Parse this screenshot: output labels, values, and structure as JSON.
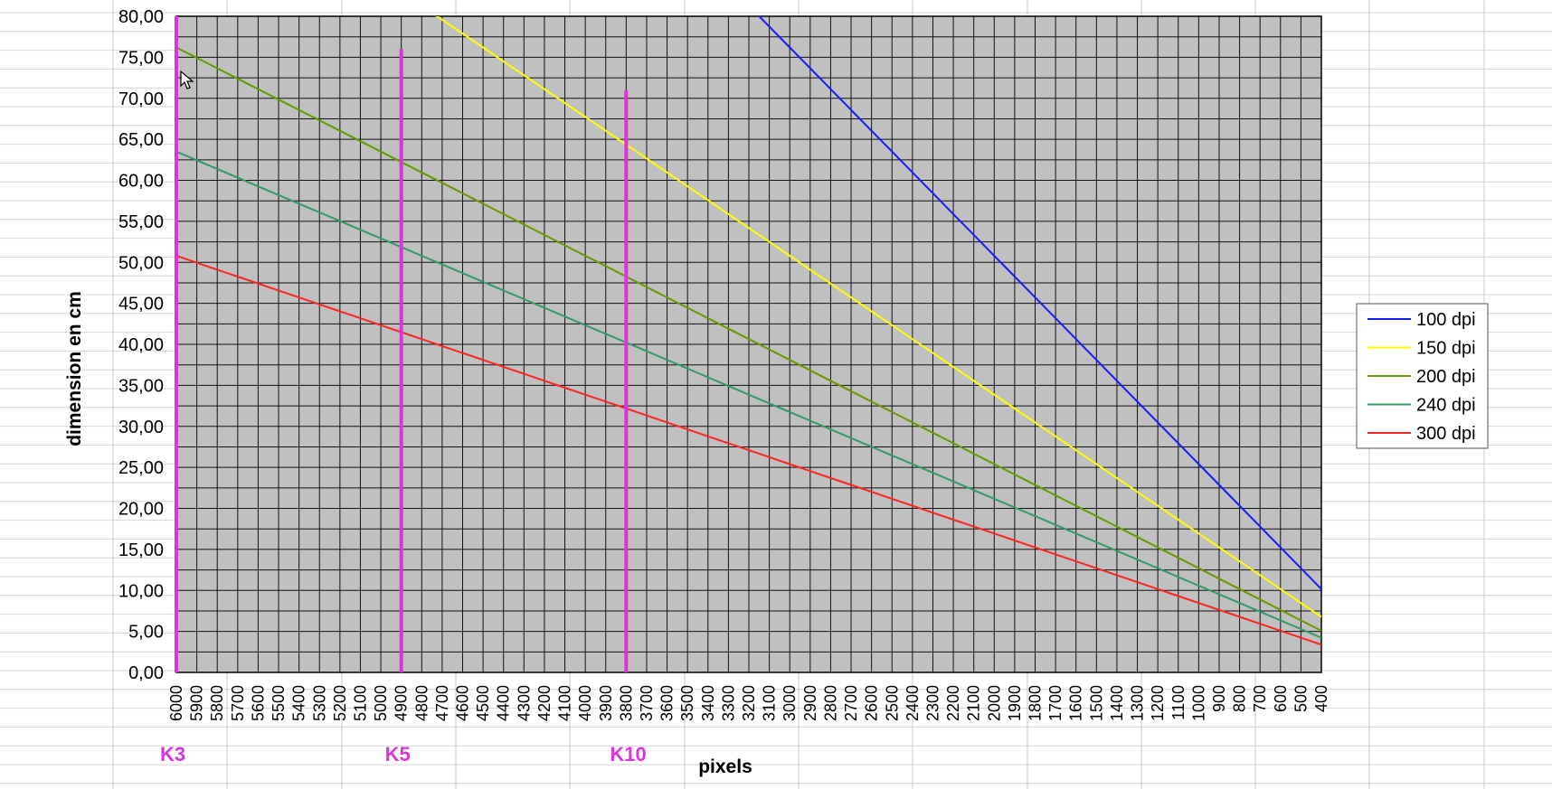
{
  "chart_data": {
    "type": "line",
    "title": "",
    "xlabel": "pixels",
    "ylabel": "dimension en cm",
    "x_reversed": true,
    "xlim": [
      6000,
      400
    ],
    "ylim": [
      0,
      80
    ],
    "y_tick_step": 5,
    "y_tick_labels": [
      "0,00",
      "5,00",
      "10,00",
      "15,00",
      "20,00",
      "25,00",
      "30,00",
      "35,00",
      "40,00",
      "45,00",
      "50,00",
      "55,00",
      "60,00",
      "65,00",
      "70,00",
      "75,00",
      "80,00"
    ],
    "x_tick_labels": [
      "6000",
      "5900",
      "5800",
      "5700",
      "5600",
      "5500",
      "5400",
      "5300",
      "5200",
      "5100",
      "5000",
      "4900",
      "4800",
      "4700",
      "4600",
      "4500",
      "4400",
      "4300",
      "4200",
      "4100",
      "4000",
      "3900",
      "3800",
      "3700",
      "3600",
      "3500",
      "3400",
      "3300",
      "3200",
      "3100",
      "3000",
      "2900",
      "2800",
      "2700",
      "2600",
      "2500",
      "2400",
      "2300",
      "2200",
      "2100",
      "2000",
      "1900",
      "1800",
      "1700",
      "1600",
      "1500",
      "1400",
      "1300",
      "1200",
      "1100",
      "1000",
      "900",
      "800",
      "700",
      "600",
      "500",
      "400"
    ],
    "grid": true,
    "plot_background": "#c0c0c0",
    "legend_position": "right",
    "series": [
      {
        "name": "100 dpi",
        "color": "#1a1aff",
        "dpi": 100
      },
      {
        "name": "150 dpi",
        "color": "#ffff00",
        "dpi": 150
      },
      {
        "name": "200 dpi",
        "color": "#669900",
        "dpi": 200
      },
      {
        "name": "240 dpi",
        "color": "#339966",
        "dpi": 240
      },
      {
        "name": "300 dpi",
        "color": "#ff2222",
        "dpi": 300
      }
    ],
    "markers": [
      {
        "label": "K3",
        "x": 6000,
        "y_top": 80,
        "color": "#dd33dd"
      },
      {
        "label": "K5",
        "x": 4900,
        "y_top": 76,
        "color": "#dd33dd"
      },
      {
        "label": "K10",
        "x": 3800,
        "y_top": 71,
        "color": "#dd33dd"
      }
    ]
  }
}
